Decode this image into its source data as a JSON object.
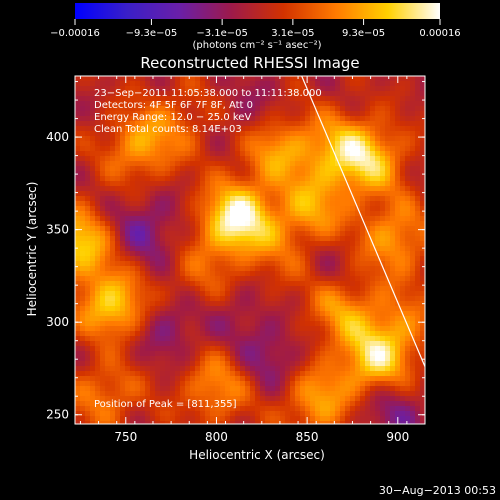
{
  "colorbar": {
    "tick_labels": [
      "−0.00016",
      "−9.3e−05",
      "−3.1e−05",
      "3.1e−05",
      "9.3e−05",
      "0.00016"
    ],
    "tick_values": [
      -0.00016,
      -9.3e-05,
      -3.1e-05,
      3.1e-05,
      9.3e-05,
      0.00016
    ],
    "range": [
      -0.00016,
      0.00016
    ],
    "colormap": "rhessi-blue-purple-red-yellow-white",
    "stops": [
      "#0000ff",
      "#3a1fc8",
      "#6a1fa8",
      "#9e1a4a",
      "#d23200",
      "#ff7a00",
      "#ffd000",
      "#ffffff"
    ],
    "unit_label": "(photons cm⁻² s⁻¹ asec⁻²)"
  },
  "title": "Reconstructed RHESSI Image",
  "info": {
    "time": "23−Sep−2011 11:05:38.000 to 11:11:38.000",
    "detectors": "Detectors: 4F 5F 6F 7F 8F, Att 0",
    "energy": "Energy Range: 12.0 − 25.0 keV",
    "method": "Clean    Total counts: 8.14E+03",
    "peak": "Position of Peak = [811,355]"
  },
  "chart_data": {
    "type": "heatmap",
    "title": "Reconstructed RHESSI Image",
    "xlabel": "Heliocentric X (arcsec)",
    "ylabel": "Heliocentric Y (arcsec)",
    "xlim": [
      722,
      915
    ],
    "ylim": [
      245,
      433
    ],
    "x_ticks": [
      750,
      800,
      850,
      900
    ],
    "y_ticks": [
      250,
      300,
      350,
      400
    ],
    "peak_position": [
      811,
      355
    ],
    "limb": [
      [
        847,
        433
      ],
      [
        915,
        276
      ]
    ],
    "blobs": [
      {
        "x": 811,
        "y": 355,
        "v": 1.0
      },
      {
        "x": 743,
        "y": 307,
        "v": 0.85
      },
      {
        "x": 724,
        "y": 343,
        "v": 0.72
      },
      {
        "x": 758,
        "y": 395,
        "v": 0.55
      },
      {
        "x": 832,
        "y": 395,
        "v": 0.58
      },
      {
        "x": 852,
        "y": 360,
        "v": 0.55
      },
      {
        "x": 866,
        "y": 393,
        "v": 0.5
      },
      {
        "x": 885,
        "y": 388,
        "v": 0.62
      },
      {
        "x": 898,
        "y": 345,
        "v": 0.55
      },
      {
        "x": 888,
        "y": 278,
        "v": 0.78
      },
      {
        "x": 855,
        "y": 257,
        "v": 0.55
      },
      {
        "x": 868,
        "y": 307,
        "v": 0.5
      },
      {
        "x": 800,
        "y": 265,
        "v": 0.5
      },
      {
        "x": 738,
        "y": 262,
        "v": 0.45
      },
      {
        "x": 790,
        "y": 320,
        "v": 0.35
      },
      {
        "x": 782,
        "y": 410,
        "v": 0.25
      },
      {
        "x": 835,
        "y": 330,
        "v": 0.25
      },
      {
        "x": 902,
        "y": 300,
        "v": 0.35
      },
      {
        "x": 760,
        "y": 350,
        "v": -0.35
      },
      {
        "x": 775,
        "y": 300,
        "v": -0.35
      },
      {
        "x": 830,
        "y": 280,
        "v": -0.3
      },
      {
        "x": 820,
        "y": 410,
        "v": -0.25
      },
      {
        "x": 860,
        "y": 330,
        "v": -0.2
      },
      {
        "x": 895,
        "y": 255,
        "v": -0.35
      },
      {
        "x": 740,
        "y": 290,
        "v": -0.2
      },
      {
        "x": 812,
        "y": 310,
        "v": -0.2
      }
    ]
  },
  "footer": {
    "date": "30−Aug−2013 00:53"
  }
}
